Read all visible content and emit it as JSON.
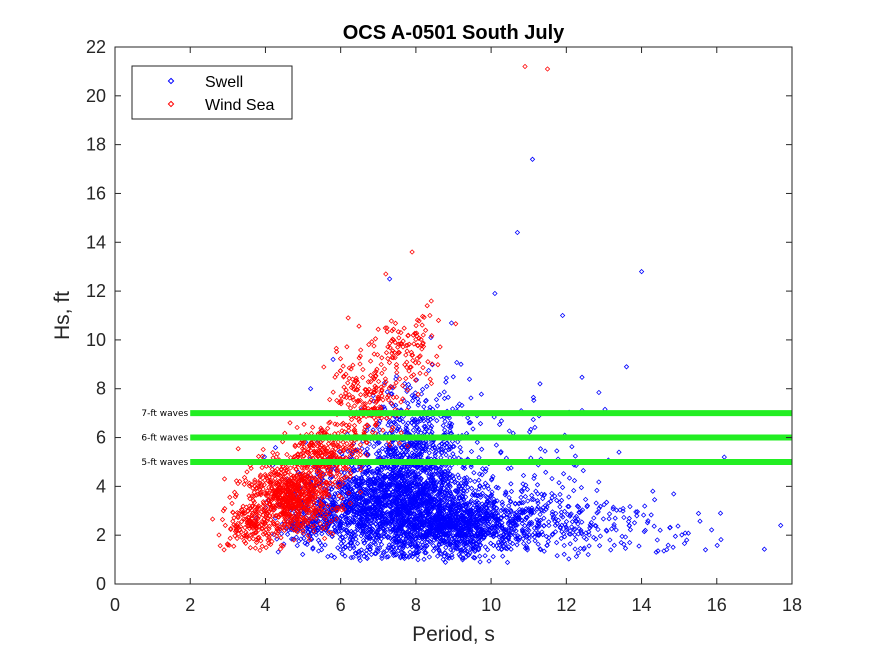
{
  "chart_data": {
    "type": "scatter",
    "title": "OCS A-0501 South July",
    "xlabel": "Period, s",
    "ylabel": "Hs, ft",
    "xlim": [
      0,
      18
    ],
    "ylim": [
      0,
      22
    ],
    "xticks": [
      0,
      2,
      4,
      6,
      8,
      10,
      12,
      14,
      16,
      18
    ],
    "yticks": [
      0,
      2,
      4,
      6,
      8,
      10,
      12,
      14,
      16,
      18,
      20,
      22
    ],
    "grid": false,
    "legend_position": "top-left",
    "marker": "diamond",
    "colors": {
      "swell": "#0000ff",
      "wind_sea": "#ff0000",
      "reference": "#22ee22"
    },
    "series": [
      {
        "name": "Swell",
        "color": "#0000ff",
        "clusters": [
          {
            "cx": 7.4,
            "cy": 3.2,
            "sx": 1.1,
            "sy": 1.0,
            "n": 1800,
            "ymin": 1.0
          },
          {
            "cx": 9.3,
            "cy": 2.4,
            "sx": 0.9,
            "sy": 0.6,
            "n": 900,
            "ymin": 0.8
          },
          {
            "cx": 8.0,
            "cy": 5.6,
            "sx": 0.7,
            "sy": 1.3,
            "n": 500,
            "ymin": 2.0
          },
          {
            "cx": 11.6,
            "cy": 2.6,
            "sx": 1.1,
            "sy": 0.7,
            "n": 260,
            "ymin": 1.0
          },
          {
            "cx": 14.2,
            "cy": 2.2,
            "sx": 1.3,
            "sy": 0.6,
            "n": 45,
            "ymin": 1.0
          },
          {
            "cx": 10.0,
            "cy": 5.0,
            "sx": 1.6,
            "sy": 1.3,
            "n": 120,
            "ymin": 2.0
          },
          {
            "cx": 5.4,
            "cy": 2.7,
            "sx": 0.6,
            "sy": 0.6,
            "n": 220,
            "ymin": 1.3
          }
        ],
        "points": [
          {
            "x": 11.1,
            "y": 17.4
          },
          {
            "x": 10.7,
            "y": 14.4
          },
          {
            "x": 14.0,
            "y": 12.8
          },
          {
            "x": 10.1,
            "y": 11.9
          },
          {
            "x": 11.9,
            "y": 11.0
          },
          {
            "x": 13.6,
            "y": 8.9
          },
          {
            "x": 11.3,
            "y": 8.2
          },
          {
            "x": 17.7,
            "y": 2.4
          },
          {
            "x": 16.1,
            "y": 2.9
          },
          {
            "x": 15.7,
            "y": 1.4
          },
          {
            "x": 15.2,
            "y": 1.8
          },
          {
            "x": 14.3,
            "y": 3.8
          },
          {
            "x": 16.2,
            "y": 5.2
          },
          {
            "x": 7.3,
            "y": 12.5
          },
          {
            "x": 5.2,
            "y": 8.0
          },
          {
            "x": 5.8,
            "y": 9.2
          },
          {
            "x": 12.8,
            "y": 6.0
          },
          {
            "x": 13.4,
            "y": 5.4
          },
          {
            "x": 10.8,
            "y": 7.1
          },
          {
            "x": 9.2,
            "y": 9.0
          },
          {
            "x": 8.4,
            "y": 10.1
          }
        ]
      },
      {
        "name": "Wind Sea",
        "color": "#ff0000",
        "clusters": [
          {
            "cx": 4.7,
            "cy": 3.6,
            "sx": 0.55,
            "sy": 0.7,
            "n": 700,
            "ymin": 1.5
          },
          {
            "cx": 5.6,
            "cy": 5.3,
            "sx": 0.45,
            "sy": 0.6,
            "n": 260,
            "ymin": 3.0
          },
          {
            "cx": 6.7,
            "cy": 7.6,
            "sx": 0.5,
            "sy": 1.0,
            "n": 230,
            "ymin": 4.5
          },
          {
            "cx": 7.8,
            "cy": 9.6,
            "sx": 0.4,
            "sy": 0.8,
            "n": 110,
            "ymin": 6.5
          },
          {
            "cx": 3.6,
            "cy": 2.4,
            "sx": 0.4,
            "sy": 0.5,
            "n": 160,
            "ymin": 1.3
          }
        ],
        "points": [
          {
            "x": 10.9,
            "y": 21.2
          },
          {
            "x": 11.5,
            "y": 21.1
          },
          {
            "x": 7.9,
            "y": 13.6
          },
          {
            "x": 7.2,
            "y": 12.7
          },
          {
            "x": 6.2,
            "y": 10.9
          },
          {
            "x": 2.9,
            "y": 1.4
          },
          {
            "x": 3.0,
            "y": 1.6
          },
          {
            "x": 3.3,
            "y": 2.9
          },
          {
            "x": 8.3,
            "y": 11.4
          },
          {
            "x": 8.6,
            "y": 10.8
          }
        ]
      }
    ],
    "reference_lines": [
      {
        "label": "7-ft waves",
        "y": 7,
        "x_from": 2,
        "x_to": 18
      },
      {
        "label": "6-ft waves",
        "y": 6,
        "x_from": 2,
        "x_to": 18
      },
      {
        "label": "5-ft waves",
        "y": 5,
        "x_from": 2,
        "x_to": 18
      }
    ]
  }
}
